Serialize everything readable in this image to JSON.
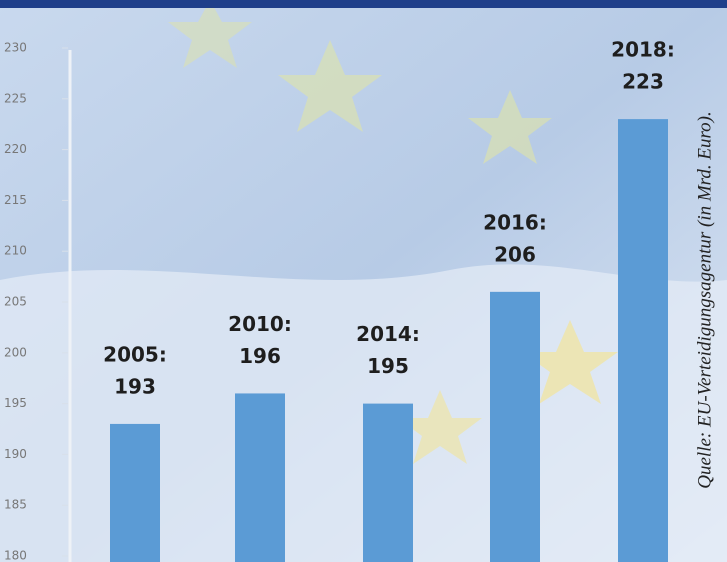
{
  "chart_data": {
    "type": "bar",
    "categories": [
      "2005:",
      "2010:",
      "2014:",
      "2016:",
      "2018:"
    ],
    "values": [
      193,
      196,
      195,
      206,
      223
    ],
    "color": "#5b9bd5",
    "ylim": [
      180,
      230
    ],
    "yticks": [
      180,
      185,
      190,
      195,
      200,
      205,
      210,
      215,
      220,
      225,
      230
    ],
    "source": "Quelle: EU-Verteidigungsagentur (in Mrd. Euro)."
  }
}
